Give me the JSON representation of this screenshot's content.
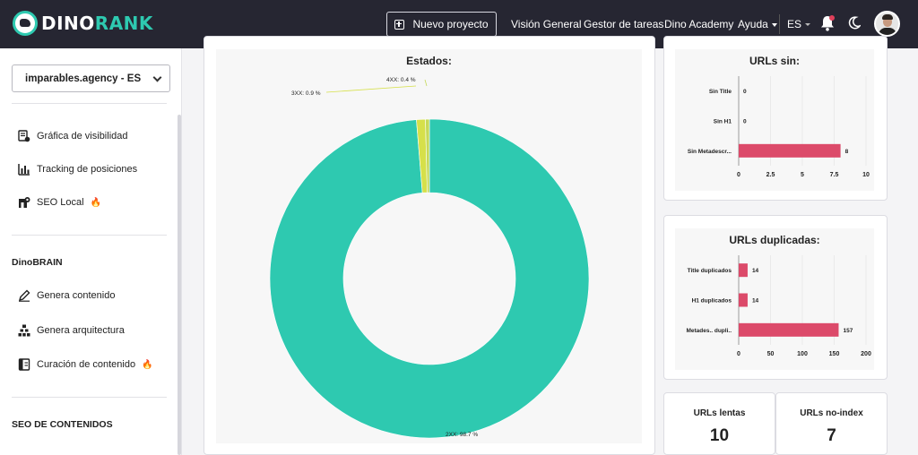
{
  "header": {
    "logo_text_a": "DINO",
    "logo_text_b": "RANK",
    "new_project_label": "Nuevo proyecto",
    "nav": [
      "Visión General",
      "Gestor de tareas",
      "Dino Academy"
    ],
    "help_label": "Ayuda",
    "language": "ES",
    "icons": [
      "bell-icon",
      "moon-icon"
    ]
  },
  "sidebar": {
    "project": "imparables.agency - ES",
    "items": [
      {
        "label": "Gráfica de visibilidad",
        "icon": "visibility-chart-icon"
      },
      {
        "label": "Tracking de posiciones",
        "icon": "bar-chart-icon"
      },
      {
        "label": "SEO Local",
        "icon": "map-pin-icon",
        "badge": "🔥"
      }
    ],
    "section_brain": "DinoBRAIN",
    "brain_items": [
      {
        "label": "Genera contenido",
        "icon": "pen-icon"
      },
      {
        "label": "Genera arquitectura",
        "icon": "sitemap-icon"
      },
      {
        "label": "Curación de contenido",
        "icon": "book-icon",
        "badge": "🔥"
      }
    ],
    "section_content": "SEO DE CONTENIDOS"
  },
  "colors": {
    "accent": "#2ec9b0",
    "bar": "#dc4a6a",
    "yellow": "#d6e04a"
  },
  "chart_data": [
    {
      "type": "pie",
      "title": "Estados:",
      "labels": [
        "2XX: 98.7 %",
        "3XX: 0.9 %",
        "4XX: 0.4 %"
      ],
      "values": [
        98.7,
        0.9,
        0.4
      ],
      "colors": [
        "#2ec9b0",
        "#d6e04a",
        "#c5d95a"
      ]
    },
    {
      "type": "bar",
      "title": "URLs sin:",
      "categories": [
        "Sin Title",
        "Sin H1",
        "Sin Metadescr..."
      ],
      "values": [
        0,
        0,
        8
      ],
      "xlim": [
        0,
        10
      ],
      "ticks": [
        "0",
        "2.5",
        "5",
        "7.5",
        "10"
      ]
    },
    {
      "type": "bar",
      "title": "URLs duplicadas:",
      "categories": [
        "Title duplicados",
        "H1 duplicados",
        "Metades.. dupli.."
      ],
      "values": [
        14,
        14,
        157
      ],
      "xlim": [
        0,
        200
      ],
      "ticks": [
        "0",
        "50",
        "100",
        "150",
        "200"
      ]
    }
  ],
  "metrics": [
    {
      "label": "URLs lentas",
      "value": "10"
    },
    {
      "label": "URLs no-index",
      "value": "7"
    }
  ]
}
